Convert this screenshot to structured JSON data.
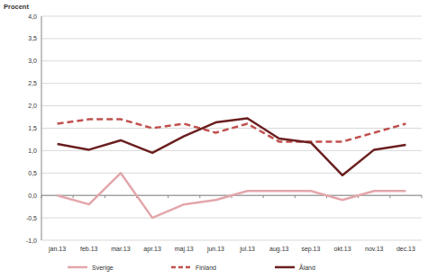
{
  "chart_data": {
    "type": "line",
    "y_label": "Procent",
    "categories": [
      "jan.13",
      "feb.13",
      "mar.13",
      "apr.13",
      "maj.13",
      "jun.13",
      "jul.13",
      "aug.13",
      "sep.13",
      "okt.13",
      "nov.13",
      "dec.13"
    ],
    "series": [
      {
        "name": "Sverige",
        "color": "#e3a6ab",
        "line_style": "solid",
        "values": [
          0.0,
          -0.2,
          0.5,
          -0.5,
          -0.2,
          -0.1,
          0.1,
          0.1,
          0.1,
          -0.1,
          0.1,
          0.1
        ]
      },
      {
        "name": "Finland",
        "color": "#c0504d",
        "line_style": "dashed",
        "values": [
          1.6,
          1.7,
          1.7,
          1.5,
          1.6,
          1.4,
          1.6,
          1.2,
          1.2,
          1.2,
          1.4,
          1.6
        ]
      },
      {
        "name": "Åland",
        "color": "#6b1f1f",
        "line_style": "solid",
        "values": [
          1.15,
          1.02,
          1.23,
          0.95,
          1.32,
          1.63,
          1.72,
          1.27,
          1.18,
          0.45,
          1.02,
          1.13
        ]
      }
    ],
    "ylim": [
      -1.0,
      4.0
    ],
    "yticks": [
      {
        "value": -1.0,
        "label": "-1,0"
      },
      {
        "value": -0.5,
        "label": "-0,5"
      },
      {
        "value": 0.0,
        "label": "0,0"
      },
      {
        "value": 0.5,
        "label": "0,5"
      },
      {
        "value": 1.0,
        "label": "1,0"
      },
      {
        "value": 1.5,
        "label": "1,5"
      },
      {
        "value": 2.0,
        "label": "2,0"
      },
      {
        "value": 2.5,
        "label": "2,5"
      },
      {
        "value": 3.0,
        "label": "3,0"
      },
      {
        "value": 3.5,
        "label": "3,5"
      },
      {
        "value": 4.0,
        "label": "4,0"
      }
    ],
    "grid": true,
    "legend": "bottom"
  }
}
